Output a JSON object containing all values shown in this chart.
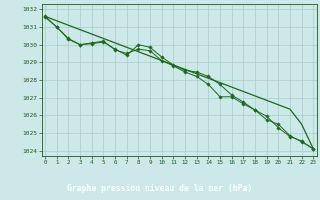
{
  "title": "Graphe pression niveau de la mer (hPa)",
  "xlabel_hours": [
    0,
    1,
    2,
    3,
    4,
    5,
    6,
    7,
    8,
    9,
    10,
    11,
    12,
    13,
    14,
    15,
    16,
    17,
    18,
    19,
    20,
    21,
    22,
    23
  ],
  "line1": [
    1031.6,
    1031.0,
    1030.35,
    1030.0,
    1030.05,
    1030.15,
    1029.75,
    1029.4,
    1030.0,
    1029.85,
    1029.3,
    1028.85,
    1028.55,
    1028.45,
    1028.2,
    1027.75,
    1027.15,
    1026.75,
    1026.3,
    1025.95,
    1025.3,
    1024.8,
    1024.55,
    1024.1
  ],
  "line2": [
    1031.55,
    1031.0,
    1030.3,
    1030.0,
    1030.1,
    1030.2,
    1029.7,
    1029.5,
    1029.75,
    1029.65,
    1029.1,
    1028.8,
    1028.45,
    1028.2,
    1027.75,
    1027.05,
    1027.05,
    1026.65,
    1026.3,
    1025.75,
    1025.5,
    1024.85,
    1024.5,
    1024.1
  ],
  "line3_smooth": [
    1031.6,
    1031.35,
    1031.1,
    1030.85,
    1030.6,
    1030.35,
    1030.1,
    1029.85,
    1029.6,
    1029.35,
    1029.1,
    1028.85,
    1028.6,
    1028.35,
    1028.1,
    1027.85,
    1027.6,
    1027.35,
    1027.1,
    1026.85,
    1026.6,
    1026.35,
    1025.5,
    1024.1
  ],
  "ylim_min": 1023.7,
  "ylim_max": 1032.3,
  "yticks": [
    1024,
    1025,
    1026,
    1027,
    1028,
    1029,
    1030,
    1031,
    1032
  ],
  "bg_color": "#cce8e8",
  "grid_color": "#aacccc",
  "line_color": "#1a6b1a",
  "title_color": "#1a5c1a",
  "title_bar_bg": "#336633",
  "title_text_color": "#ffffff"
}
